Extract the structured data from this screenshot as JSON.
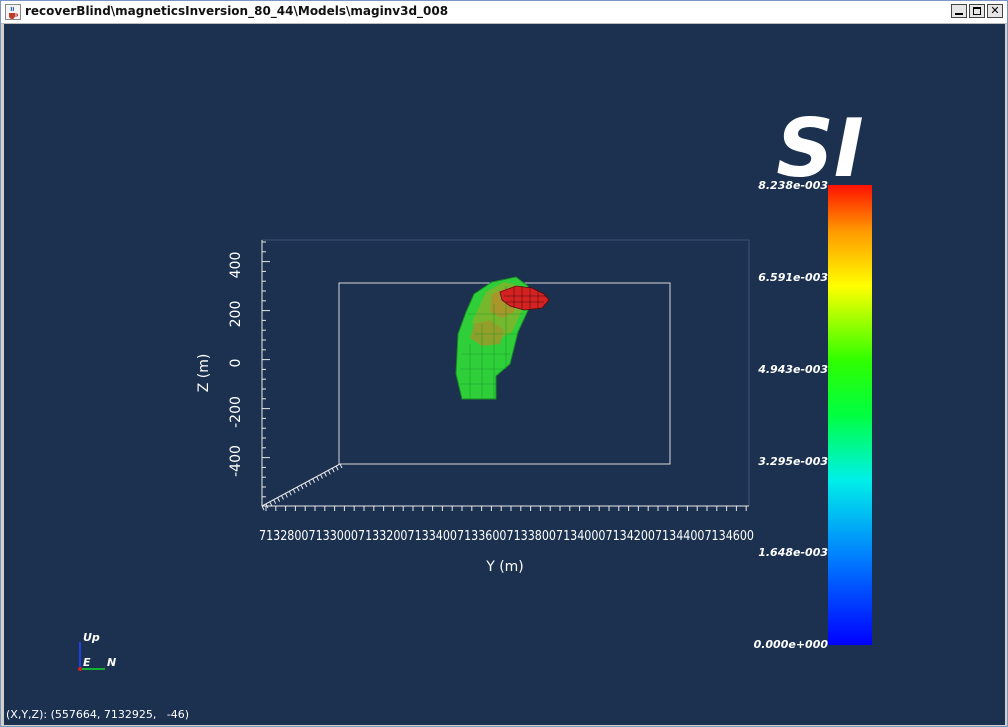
{
  "window": {
    "title": "recoverBlind\\magneticsInversion_80_44\\Models\\maginv3d_008",
    "app_icon": "java-coffee-cup-icon",
    "controls": {
      "minimize": "minimize-icon",
      "maximize": "maximize-icon",
      "close": "close-icon"
    }
  },
  "plot": {
    "z_axis_label": "Z (m)",
    "y_axis_label": "Y (m)",
    "z_ticks": [
      "400",
      "200",
      "0",
      "-200",
      "-400"
    ],
    "y_tick_row": "7132800713300071332007133400713360071338007134000713420071344007134600",
    "y_tick_first_digit": "7"
  },
  "colorbar": {
    "unit": "SI",
    "labels": [
      "8.238e-003",
      "6.591e-003",
      "4.943e-003",
      "3.295e-003",
      "1.648e-003",
      "0.000e+000"
    ],
    "colors": {
      "high": "#ff0000",
      "low": "#0000ff"
    }
  },
  "orientation": {
    "up": "Up",
    "east": "E",
    "north": "N"
  },
  "status": {
    "coords": "(X,Y,Z): (557664, 7132925,   -46)"
  },
  "colors": {
    "background": "#1b314f",
    "box": "#d8d8d8",
    "model_green": "#22c832",
    "model_red": "#d22020"
  }
}
